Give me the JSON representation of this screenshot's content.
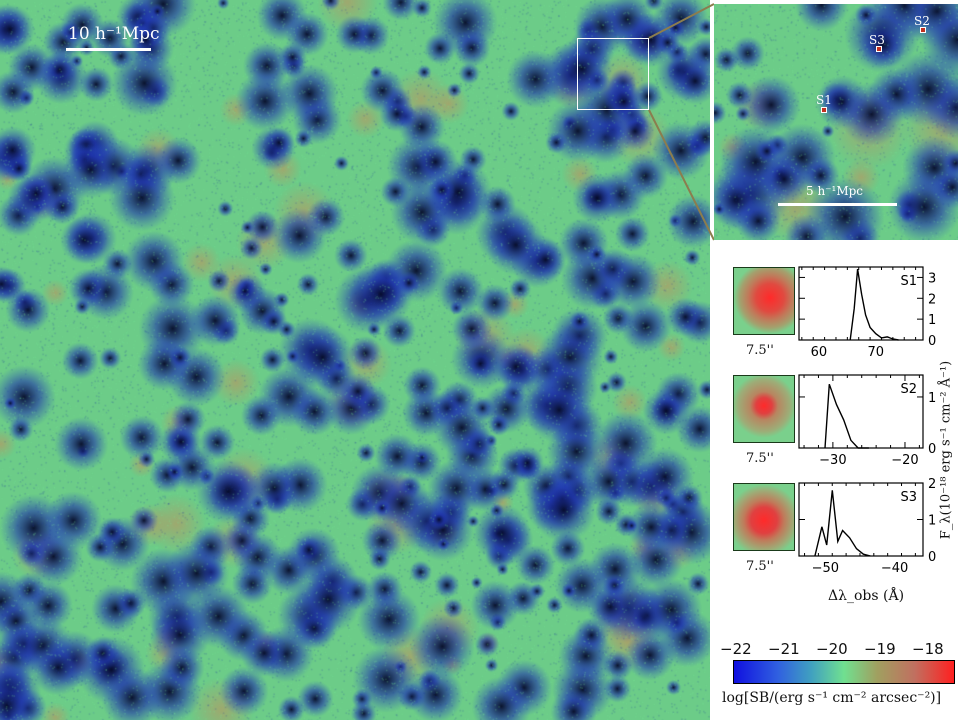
{
  "main_map": {
    "scale_bar_label": "10 h⁻¹Mpc",
    "colors": {
      "void": "#0a0f30",
      "filament_low": "#2a3fb0",
      "mid": "#6fcf86",
      "high": "#c98a5a"
    }
  },
  "inset": {
    "scale_bar_label": "5 h⁻¹Mpc",
    "sources": [
      "S1",
      "S2",
      "S3"
    ]
  },
  "chart_data": [
    {
      "type": "line",
      "label": "S1",
      "thumbnail_label": "7.5''",
      "x_ticks": [
        60,
        70
      ],
      "y_ticks": [
        0,
        1,
        2,
        3
      ],
      "xlim": [
        56.5,
        78.3
      ],
      "ylim": [
        0,
        3.5
      ],
      "x": [
        65.5,
        66.2,
        66.8,
        67.5,
        68.2,
        69.0,
        70.0,
        71.0,
        72.0,
        73.0,
        74.0
      ],
      "y": [
        0,
        1.5,
        3.4,
        2.2,
        1.2,
        0.6,
        0.3,
        0.1,
        0.15,
        0.05,
        0
      ]
    },
    {
      "type": "line",
      "label": "S2",
      "thumbnail_label": "7.5''",
      "x_ticks": [
        -30,
        -20
      ],
      "y_ticks": [
        0,
        1
      ],
      "xlim": [
        -34.7,
        -17.5
      ],
      "ylim": [
        0,
        1.43
      ],
      "x": [
        -31.1,
        -30.5,
        -29.5,
        -28.5,
        -27.5,
        -26.5,
        -25.0
      ],
      "y": [
        0,
        1.25,
        0.85,
        0.55,
        0.15,
        0,
        0
      ]
    },
    {
      "type": "line",
      "label": "S3",
      "thumbnail_label": "7.5''",
      "x_ticks": [
        -50,
        -40
      ],
      "y_ticks": [
        0,
        1,
        2
      ],
      "xlim": [
        -53.8,
        -35.9
      ],
      "ylim": [
        0,
        2
      ],
      "x": [
        -51.5,
        -50.5,
        -49.8,
        -49.0,
        -48.2,
        -47.5,
        -46.5,
        -45.5,
        -44.5,
        -43.5
      ],
      "y": [
        0,
        0.8,
        0.3,
        1.8,
        0.4,
        0.7,
        0.5,
        0.2,
        0.05,
        0
      ]
    }
  ],
  "spectra": {
    "xlabel": "Δλ_obs (Å)",
    "ylabel": "F_λ(10⁻¹⁸ erg s⁻¹ cm⁻² Å⁻¹)"
  },
  "colorbar": {
    "ticks": [
      "−22",
      "−21",
      "−20",
      "−19",
      "−18"
    ],
    "label": "log[SB/(erg s⁻¹ cm⁻² arcsec⁻²)]",
    "colors": [
      "#1010e0",
      "#3060e0",
      "#40a0c0",
      "#70e090",
      "#a0a060",
      "#c07060",
      "#ff2020"
    ]
  }
}
